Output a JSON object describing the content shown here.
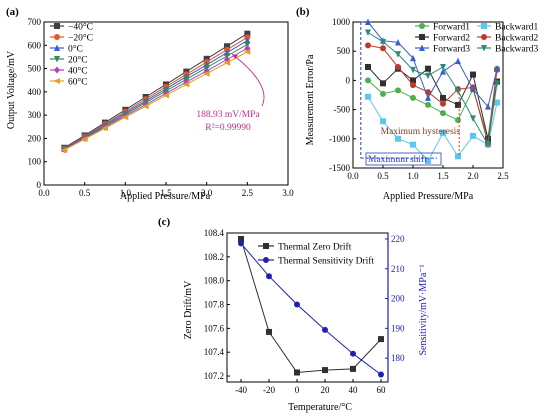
{
  "chart_data": [
    {
      "panel_label": "(a)",
      "type": "line",
      "xlabel": "Applied Pressure/MPa",
      "ylabel": "Output Voltage/mV",
      "xlim": [
        0.0,
        3.0
      ],
      "ylim": [
        0,
        700
      ],
      "xticks": [
        "0.0",
        "0.5",
        "1.0",
        "1.5",
        "2.0",
        "2.5",
        "3.0"
      ],
      "yticks": [
        "0",
        "100",
        "200",
        "300",
        "400",
        "500",
        "600",
        "700"
      ],
      "legend_position": "top-left",
      "x": [
        0.25,
        0.5,
        0.75,
        1.0,
        1.25,
        1.5,
        1.75,
        2.0,
        2.25,
        2.5
      ],
      "series": [
        {
          "name": "−40°C",
          "color": "#404040",
          "marker": "square",
          "values": [
            160,
            213,
            268,
            323,
            378,
            432,
            487,
            542,
            596,
            650
          ]
        },
        {
          "name": "−20°C",
          "color": "#e4572e",
          "marker": "circle",
          "values": [
            157,
            209,
            262,
            315,
            369,
            422,
            475,
            528,
            581,
            634
          ]
        },
        {
          "name": "0°C",
          "color": "#3a5fcd",
          "marker": "triangle-up",
          "values": [
            155,
            206,
            258,
            309,
            361,
            413,
            465,
            516,
            568,
            620
          ]
        },
        {
          "name": "20°C",
          "color": "#2e8b57",
          "marker": "triangle-down",
          "values": [
            153,
            203,
            253,
            303,
            354,
            404,
            454,
            504,
            554,
            604
          ]
        },
        {
          "name": "40°C",
          "color": "#b040c0",
          "marker": "diamond",
          "values": [
            152,
            200,
            248,
            297,
            345,
            394,
            442,
            490,
            539,
            587
          ]
        },
        {
          "name": "60°C",
          "color": "#e0a020",
          "marker": "triangle-left",
          "values": [
            150,
            197,
            244,
            291,
            338,
            385,
            432,
            478,
            525,
            572
          ]
        }
      ],
      "annotations": [
        "188.93 mV/MPa",
        "R²=0.99990"
      ]
    },
    {
      "panel_label": "(b)",
      "type": "line",
      "xlabel": "Applied Pressure/MPa",
      "ylabel": "Measurement Error/Pa",
      "xlim": [
        0.0,
        2.5
      ],
      "ylim": [
        -1500,
        1000
      ],
      "xticks": [
        "0.0",
        "0.5",
        "1.0",
        "1.5",
        "2.0",
        "2.5"
      ],
      "yticks": [
        "-1500",
        "-1000",
        "-500",
        "0",
        "500",
        "1000"
      ],
      "legend_position": "top-right",
      "x": [
        0.25,
        0.5,
        0.75,
        1.0,
        1.25,
        1.5,
        1.75,
        2.0,
        2.25,
        2.4
      ],
      "series": [
        {
          "name": "Forward1",
          "color": "#4caf50",
          "marker": "circle",
          "values": [
            0,
            -230,
            -170,
            -300,
            -420,
            -560,
            -680,
            -150,
            -1000,
            200
          ]
        },
        {
          "name": "Backward1",
          "color": "#5bc8f0",
          "marker": "square",
          "values": [
            -280,
            -700,
            -1000,
            -1100,
            -1380,
            -900,
            -1300,
            -950,
            -1100,
            -380
          ]
        },
        {
          "name": "Forward2",
          "color": "#303030",
          "marker": "square",
          "values": [
            230,
            -50,
            200,
            0,
            200,
            -300,
            -420,
            100,
            -1000,
            -20
          ]
        },
        {
          "name": "Backward2",
          "color": "#c0392b",
          "marker": "circle",
          "values": [
            600,
            550,
            230,
            -80,
            -200,
            -400,
            -150,
            -120,
            -1080,
            180
          ]
        },
        {
          "name": "Forward3",
          "color": "#3a5fcd",
          "marker": "triangle-up",
          "values": [
            1000,
            680,
            650,
            380,
            -300,
            150,
            330,
            -150,
            -450,
            200
          ]
        },
        {
          "name": "Backward3",
          "color": "#2e8b7a",
          "marker": "triangle-down",
          "values": [
            820,
            660,
            450,
            180,
            80,
            230,
            -180,
            -650,
            -1100,
            -50
          ]
        }
      ],
      "annotations": [
        "Maximum hysteresis",
        "Maximum shift"
      ]
    },
    {
      "panel_label": "(c)",
      "type": "line",
      "xlabel": "Temperature/°C",
      "ylabel": "Zero Drift/mV",
      "y2label": "Sensitivity/mV·MPa⁻¹",
      "xlim": [
        -50,
        65
      ],
      "ylim": [
        107.15,
        108.4
      ],
      "y2lim": [
        172,
        222
      ],
      "xticks": [
        "-40",
        "-20",
        "0",
        "20",
        "40",
        "60"
      ],
      "yticks": [
        "107.2",
        "107.4",
        "107.6",
        "107.8",
        "108.0",
        "108.2",
        "108.4"
      ],
      "y2ticks": [
        "180",
        "190",
        "200",
        "210",
        "220"
      ],
      "legend_position": "top-right",
      "x": [
        -40,
        -20,
        0,
        20,
        40,
        60
      ],
      "series": [
        {
          "name": "Thermal Zero Drift",
          "color": "#303030",
          "marker": "square",
          "axis": "left",
          "values": [
            108.35,
            107.57,
            107.23,
            107.25,
            107.26,
            107.51
          ]
        },
        {
          "name": "Thermal Sensitivity Drift",
          "color": "#2020b0",
          "marker": "circle",
          "axis": "right",
          "values": [
            218.5,
            207.5,
            198.0,
            189.5,
            181.5,
            174.5
          ]
        }
      ]
    }
  ]
}
